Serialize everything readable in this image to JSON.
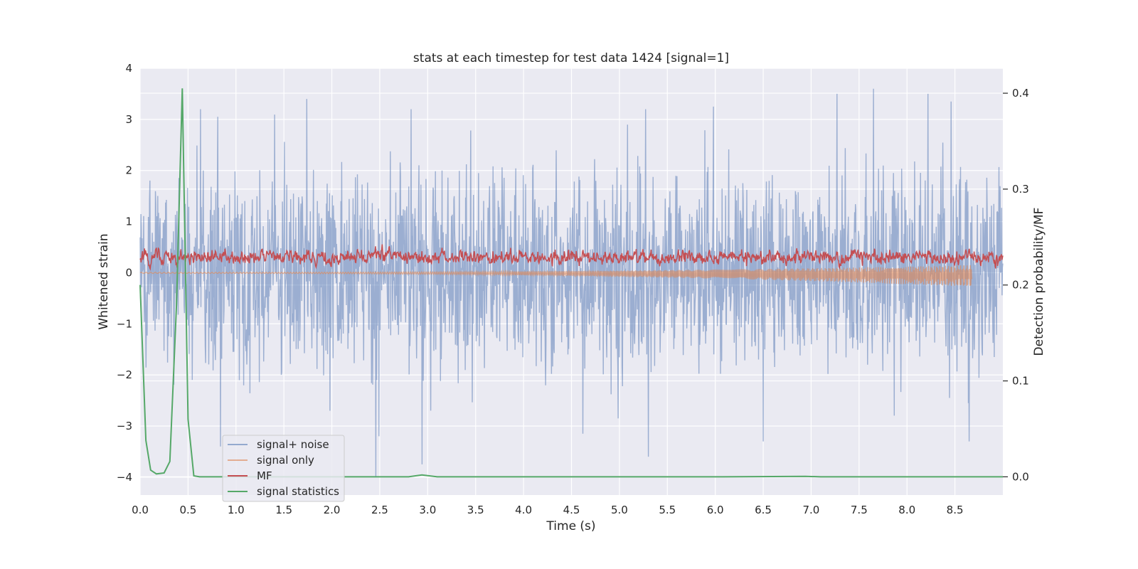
{
  "chart_data": {
    "type": "line",
    "title": "stats at each timestep for test data 1424 [signal=1]",
    "xlabel": "Time (s)",
    "ylabel_left": "Whitened strain",
    "ylabel_right": "Detection probability/MF",
    "xlim": [
      0.0,
      9.0
    ],
    "ylim_left": [
      -4.35,
      4.0
    ],
    "ylim_right": [
      -0.019,
      0.426
    ],
    "x_ticks": [
      "0.0",
      "0.5",
      "1.0",
      "1.5",
      "2.0",
      "2.5",
      "3.0",
      "3.5",
      "4.0",
      "4.5",
      "5.0",
      "5.5",
      "6.0",
      "6.5",
      "7.0",
      "7.5",
      "8.0",
      "8.5"
    ],
    "y_ticks_left": [
      "−4",
      "−3",
      "−2",
      "−1",
      "0",
      "1",
      "2",
      "3",
      "4"
    ],
    "y_ticks_right": [
      "0.0",
      "0.1",
      "0.2",
      "0.3",
      "0.4"
    ],
    "grid": true,
    "legend_position": "lower-left",
    "colors": {
      "background": "#eaeaf2",
      "grid": "#ffffff",
      "signal_noise": "#4c72b0",
      "signal_only": "#dd8452",
      "mf": "#c44e52",
      "signal_statistics": "#55a868"
    },
    "series": [
      {
        "name": "signal+ noise",
        "axis": "left",
        "description_values": "dense whitened noise, amplitude roughly ±2.5 with peaks to ±3.6",
        "amplitude": 2.0,
        "peaks": [
          {
            "x": 0.81,
            "y": 3.05
          },
          {
            "x": 0.84,
            "y": -3.4
          },
          {
            "x": 1.74,
            "y": 3.4
          },
          {
            "x": 2.46,
            "y": -4.0
          },
          {
            "x": 2.94,
            "y": -3.75
          },
          {
            "x": 5.3,
            "y": -3.6
          },
          {
            "x": 7.27,
            "y": 3.5
          },
          {
            "x": 7.65,
            "y": 3.6
          },
          {
            "x": 8.22,
            "y": 3.5
          },
          {
            "x": 8.46,
            "y": 3.35
          },
          {
            "x": 8.65,
            "y": -3.3
          },
          {
            "x": 5.98,
            "y": 3.25
          },
          {
            "x": 4.62,
            "y": -3.15
          },
          {
            "x": 6.5,
            "y": -3.3
          }
        ]
      },
      {
        "name": "signal only",
        "axis": "left",
        "description_values": "chirp near zero, growing to about -0.2 at 8.7 s then ending",
        "end_x": 8.68,
        "final_amplitude": 0.2
      },
      {
        "name": "MF",
        "axis": "left",
        "description_values": "matched filter output oscillating between about 0.0 and 0.8, peaks near 1.0",
        "mean": 0.3,
        "amplitude": 0.25
      },
      {
        "name": "signal statistics",
        "axis": "right",
        "x": [
          0.0,
          0.06,
          0.11,
          0.17,
          0.25,
          0.31,
          0.38,
          0.44,
          0.5,
          0.56,
          0.62,
          0.9,
          2.8,
          2.94,
          3.1,
          6.0,
          6.94,
          7.1,
          9.0
        ],
        "y": [
          0.2,
          0.038,
          0.007,
          0.003,
          0.004,
          0.016,
          0.18,
          0.405,
          0.06,
          0.001,
          0.0,
          0.0,
          0.0,
          0.002,
          0.0,
          0.0,
          0.0005,
          0.0,
          0.0
        ]
      }
    ]
  },
  "legend": {
    "items": [
      {
        "label": "signal+ noise",
        "color": "#4c72b0"
      },
      {
        "label": "signal only",
        "color": "#dd8452"
      },
      {
        "label": "MF",
        "color": "#c44e52"
      },
      {
        "label": "signal statistics",
        "color": "#55a868"
      }
    ]
  }
}
